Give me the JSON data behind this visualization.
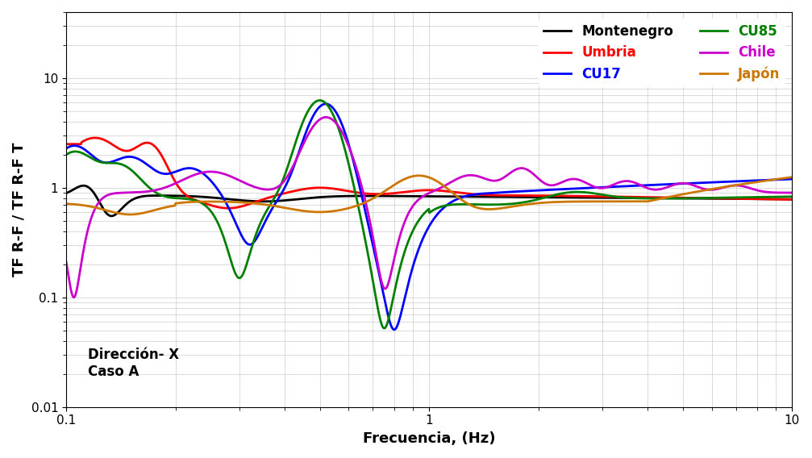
{
  "title": "",
  "xlabel": "Frecuencia, (Hz)",
  "ylabel": "TF R-F / TF R-F T",
  "xlim": [
    0.1,
    10
  ],
  "ylim": [
    0.01,
    40
  ],
  "annotation_line1": "Dirección- X",
  "annotation_line2": "Caso A",
  "legend_entries": [
    "Montenegro",
    "Umbria",
    "CU17",
    "CU85",
    "Chile",
    "Japón"
  ],
  "colors": {
    "Montenegro": "#000000",
    "Umbria": "#ff0000",
    "CU17": "#0000ff",
    "CU85": "#008000",
    "Chile": "#cc00cc",
    "Japon": "#cc7700"
  },
  "linewidth": 2.0
}
